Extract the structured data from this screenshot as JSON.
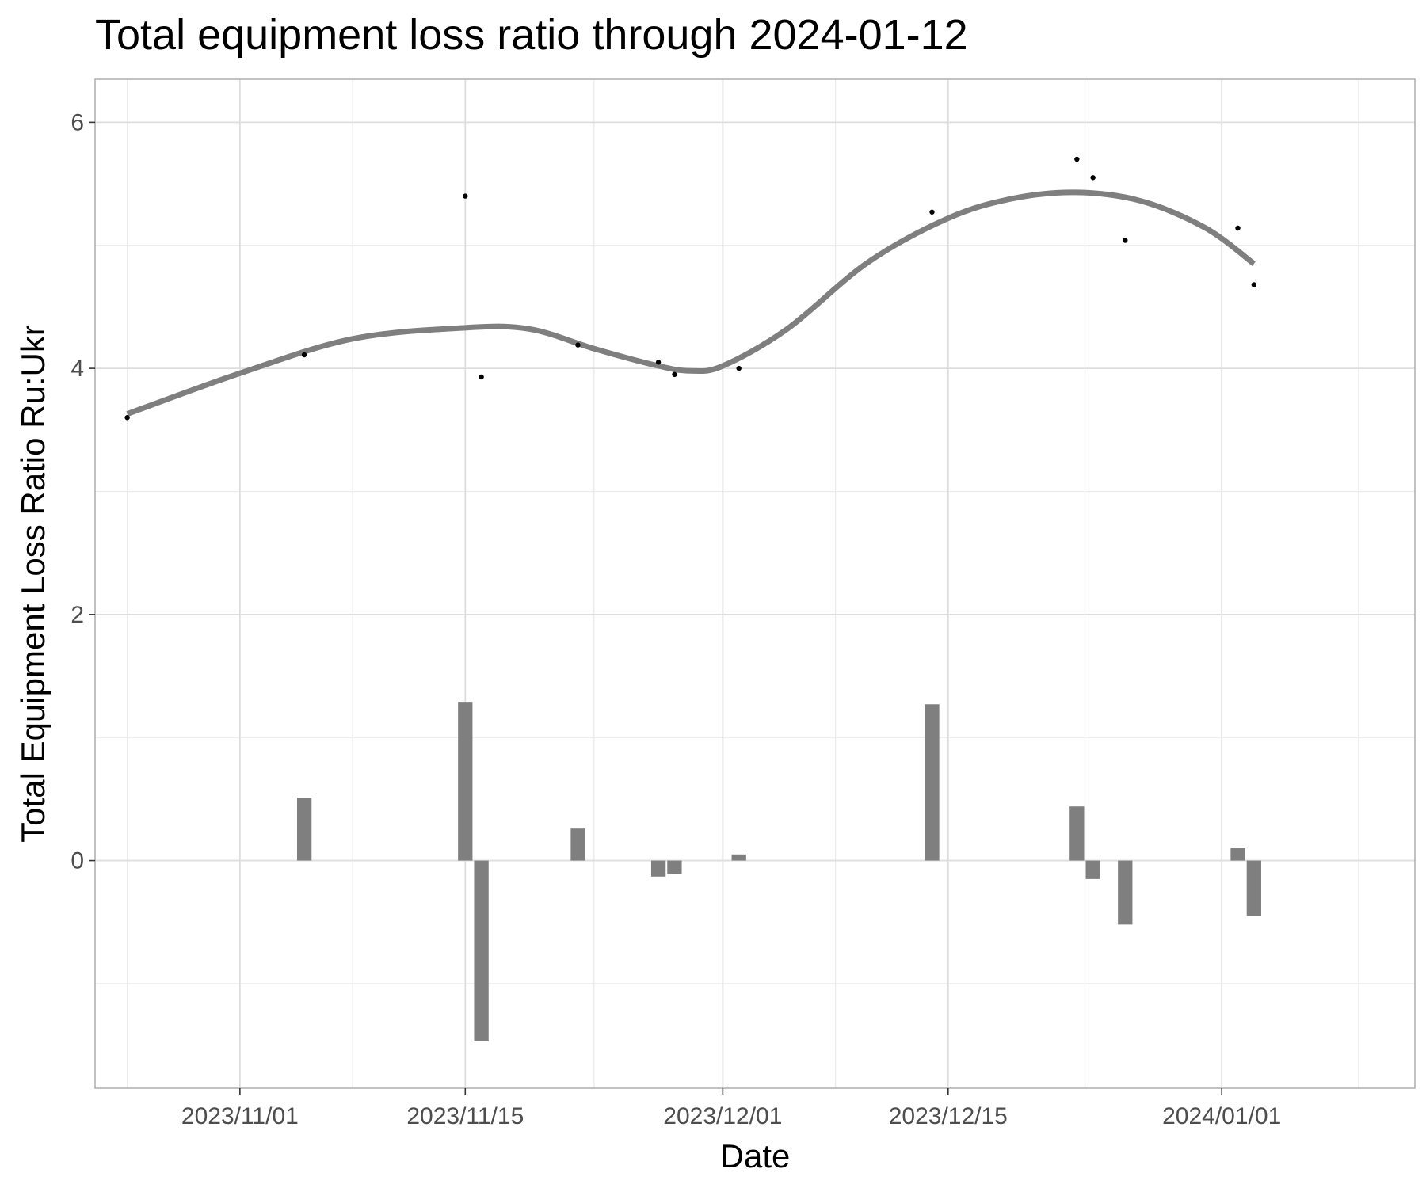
{
  "chart_data": {
    "type": "bar",
    "title": "Total equipment loss ratio through 2024-01-12",
    "xlabel": "Date",
    "ylabel": "Total Equipment Loss Ratio Ru:Ukr",
    "x_axis": {
      "type": "date",
      "range": [
        "2023-10-23",
        "2024-01-13"
      ],
      "ticks": [
        "2023-11-01",
        "2023-11-15",
        "2023-12-01",
        "2023-12-15",
        "2024-01-01"
      ],
      "tick_labels": [
        "2023/11/01",
        "2023/11/15",
        "2023/12/01",
        "2023/12/15",
        "2024/01/01"
      ]
    },
    "y_axis": {
      "range": [
        -1.85,
        6.35
      ],
      "ticks": [
        0,
        2,
        4,
        6
      ],
      "tick_labels": [
        "0",
        "2",
        "4",
        "6"
      ]
    },
    "grid": true,
    "points": {
      "type": "scatter",
      "x": [
        "2023-10-25",
        "2023-11-05",
        "2023-11-15",
        "2023-11-16",
        "2023-11-22",
        "2023-11-27",
        "2023-11-28",
        "2023-12-02",
        "2023-12-14",
        "2023-12-23",
        "2023-12-24",
        "2023-12-26",
        "2024-01-02",
        "2024-01-03"
      ],
      "y": [
        3.6,
        4.11,
        5.4,
        3.93,
        4.19,
        4.05,
        3.95,
        4.0,
        5.27,
        5.7,
        5.55,
        5.04,
        5.14,
        4.68
      ]
    },
    "bars": {
      "type": "bar",
      "color": "#7f7f7f",
      "x": [
        "2023-11-05",
        "2023-11-15",
        "2023-11-16",
        "2023-11-22",
        "2023-11-27",
        "2023-11-28",
        "2023-12-02",
        "2023-12-14",
        "2023-12-23",
        "2023-12-24",
        "2023-12-26",
        "2024-01-02",
        "2024-01-03"
      ],
      "values": [
        0.51,
        1.29,
        -1.47,
        0.26,
        -0.13,
        -0.11,
        0.05,
        1.27,
        0.44,
        -0.15,
        -0.52,
        0.1,
        -0.45
      ]
    },
    "smooth": {
      "type": "line",
      "color": "#7f7f7f",
      "x": [
        "2023-10-25",
        "2023-11-01",
        "2023-11-08",
        "2023-11-15",
        "2023-11-19",
        "2023-11-23",
        "2023-11-27",
        "2023-11-29",
        "2023-12-01",
        "2023-12-05",
        "2023-12-10",
        "2023-12-15",
        "2023-12-19",
        "2023-12-23",
        "2023-12-27",
        "2023-12-31",
        "2024-01-03"
      ],
      "y": [
        3.63,
        3.96,
        4.24,
        4.33,
        4.32,
        4.16,
        4.02,
        3.98,
        4.02,
        4.32,
        4.86,
        5.22,
        5.38,
        5.43,
        5.36,
        5.14,
        4.85
      ]
    }
  }
}
